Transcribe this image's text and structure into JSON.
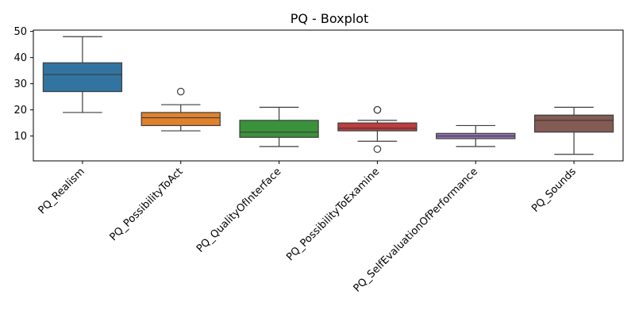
{
  "chart_data": {
    "type": "box",
    "title": "PQ - Boxplot",
    "xlabel": "",
    "ylabel": "",
    "ylim": [
      0.5,
      50.5
    ],
    "yticks": [
      10,
      20,
      30,
      40,
      50
    ],
    "grid": false,
    "categories": [
      "PQ_Realism",
      "PQ_PossibilityToAct",
      "PQ_QualityOfInterface",
      "PQ_PossibilityToExamine",
      "PQ_SelfEvaluationOfPerformance",
      "PQ_Sounds"
    ],
    "boxes": [
      {
        "category": "PQ_Realism",
        "color": "#3274a1",
        "whisker_low": 19,
        "q1": 27,
        "median": 33.5,
        "q3": 38,
        "whisker_high": 48,
        "outliers": []
      },
      {
        "category": "PQ_PossibilityToAct",
        "color": "#e1812c",
        "whisker_low": 12,
        "q1": 14,
        "median": 17,
        "q3": 19,
        "whisker_high": 22,
        "outliers": [
          27
        ]
      },
      {
        "category": "PQ_QualityOfInterface",
        "color": "#3a923a",
        "whisker_low": 6,
        "q1": 9.5,
        "median": 11.5,
        "q3": 16,
        "whisker_high": 21,
        "outliers": []
      },
      {
        "category": "PQ_PossibilityToExamine",
        "color": "#c03d3e",
        "whisker_low": 8,
        "q1": 12,
        "median": 13,
        "q3": 15,
        "whisker_high": 16,
        "outliers": [
          20,
          20,
          5
        ]
      },
      {
        "category": "PQ_SelfEvaluationOfPerformance",
        "color": "#9372b2",
        "whisker_low": 6,
        "q1": 9,
        "median": 10,
        "q3": 11,
        "whisker_high": 14,
        "outliers": []
      },
      {
        "category": "PQ_Sounds",
        "color": "#845b53",
        "whisker_low": 3,
        "q1": 11.5,
        "median": 16,
        "q3": 18,
        "whisker_high": 21,
        "outliers": []
      }
    ]
  }
}
